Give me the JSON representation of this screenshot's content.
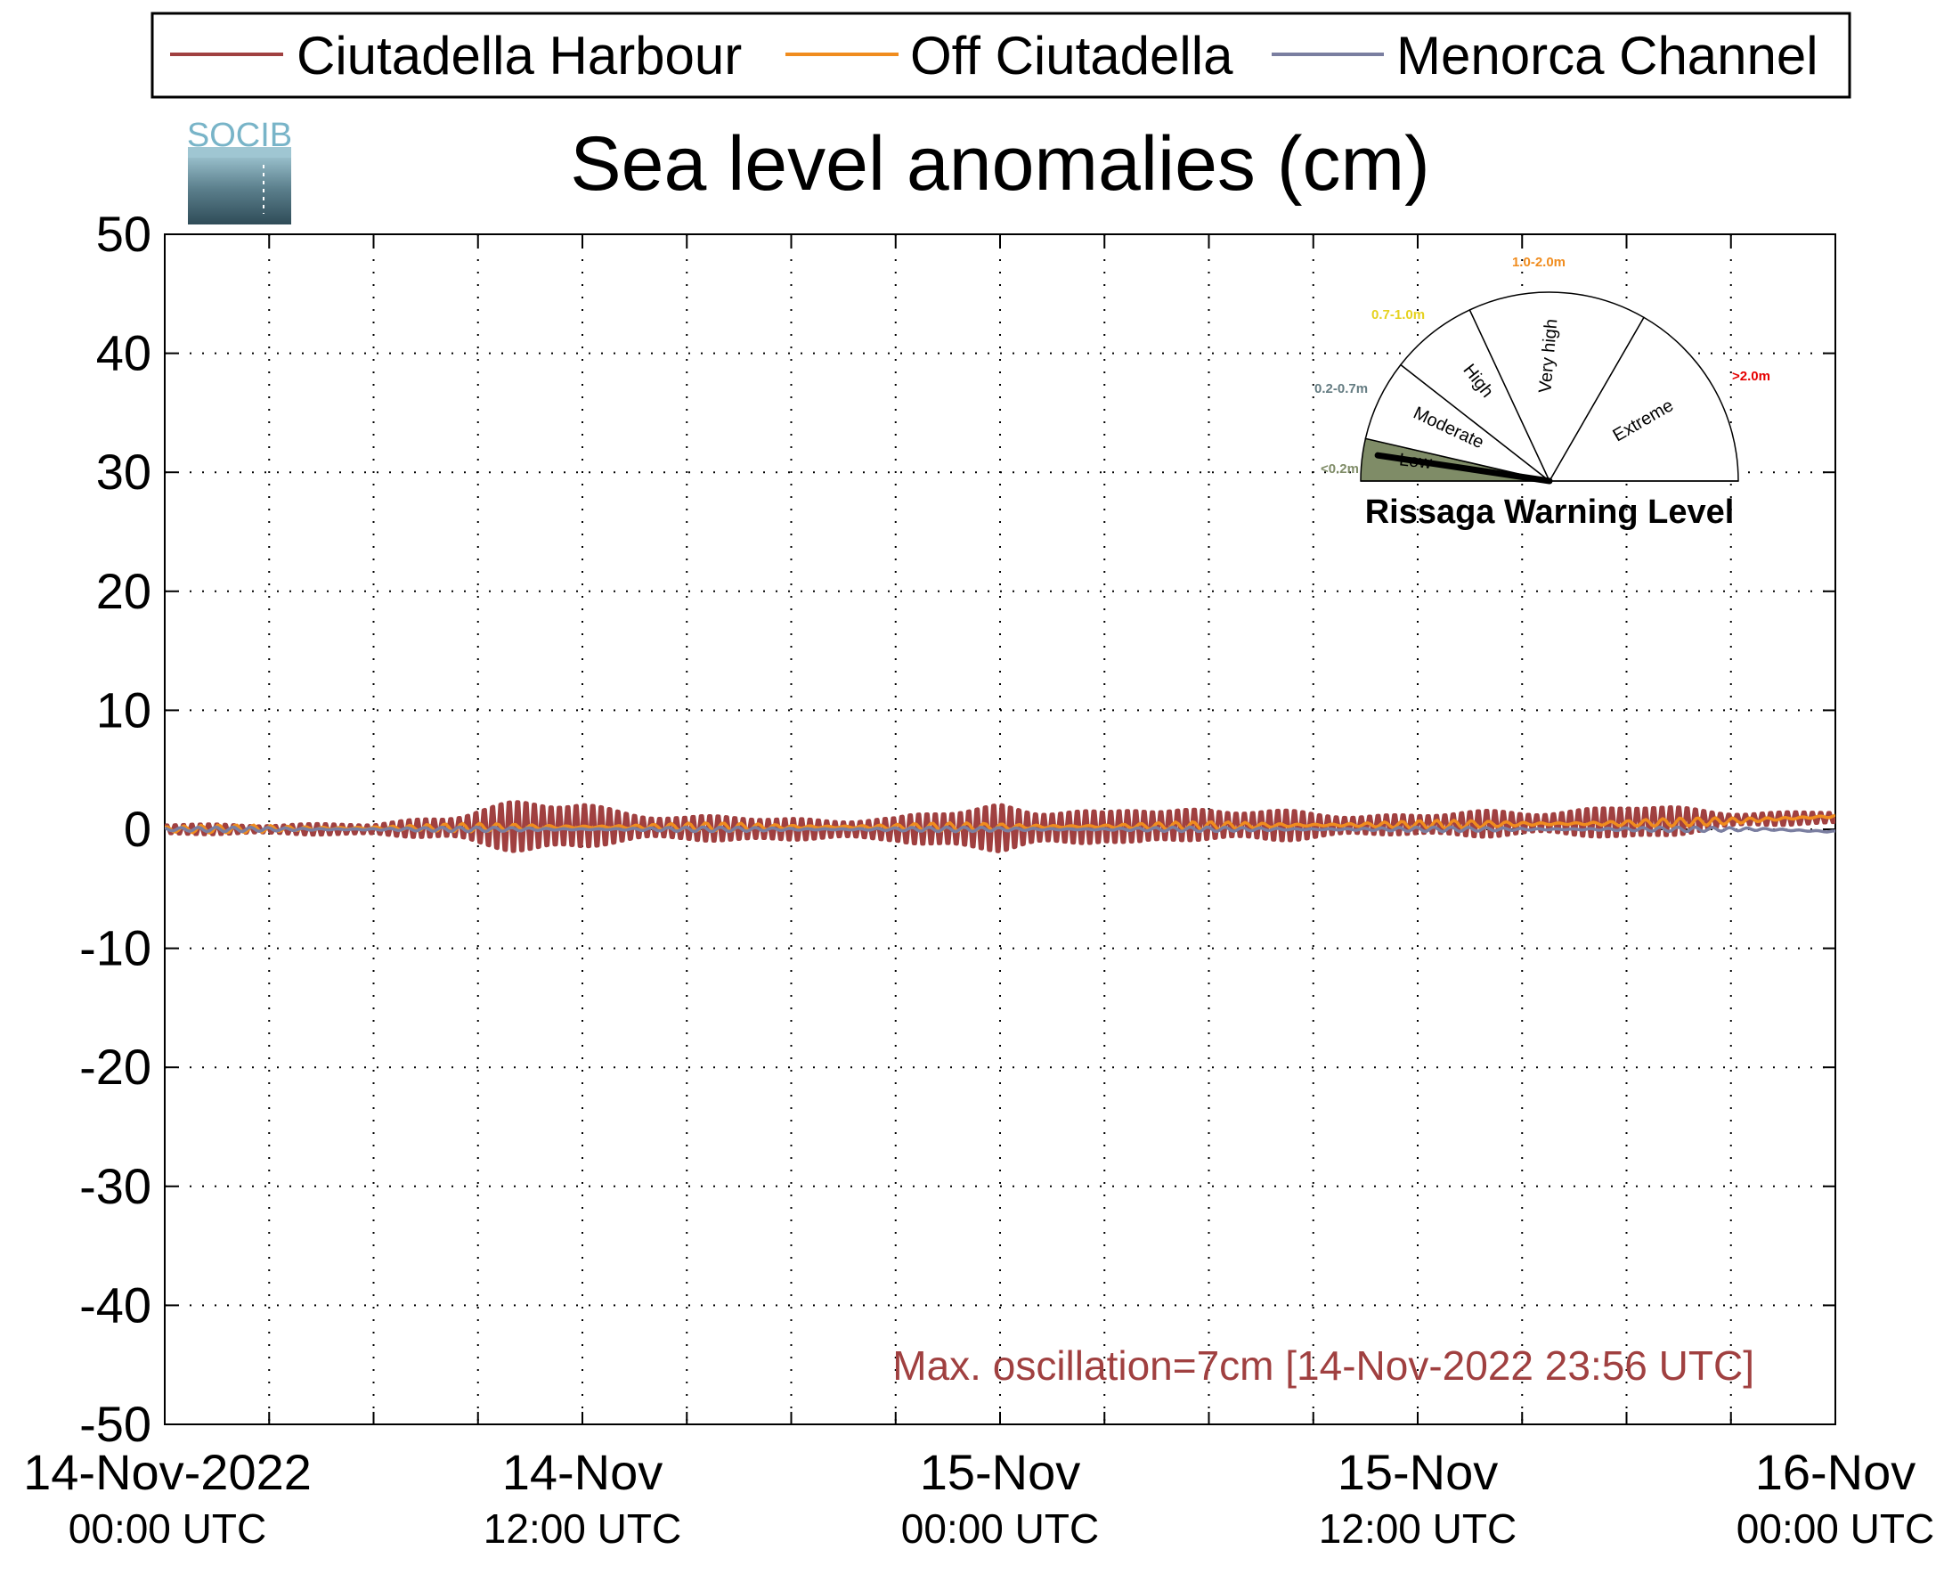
{
  "chart_data": {
    "type": "line",
    "title": "Sea level anomalies (cm)",
    "xlabel": "",
    "ylabel": "",
    "ylim": [
      -50,
      50
    ],
    "yticks": [
      50,
      40,
      30,
      20,
      10,
      0,
      -10,
      -20,
      -30,
      -40,
      -50
    ],
    "ytick_labels": [
      "50",
      "40",
      "30",
      "20",
      "10",
      "0",
      "-10",
      "-20",
      "-30",
      "-40",
      "-50"
    ],
    "xlim_hours": [
      0,
      48
    ],
    "x_unit": "hours since 14-Nov-2022 00:00 UTC",
    "xticks_hours": [
      0,
      12,
      24,
      36,
      48
    ],
    "xtick_labels": [
      {
        "line1": "14-Nov-2022",
        "line2": "00:00 UTC"
      },
      {
        "line1": "14-Nov",
        "line2": "12:00 UTC"
      },
      {
        "line1": "15-Nov",
        "line2": "00:00 UTC"
      },
      {
        "line1": "15-Nov",
        "line2": "12:00 UTC"
      },
      {
        "line1": "16-Nov",
        "line2": "00:00 UTC"
      }
    ],
    "grid": true,
    "legend_position": "top",
    "series": [
      {
        "name": "Ciutadella Harbour",
        "color": "#a04040",
        "mean_hours": [
          0,
          3,
          6,
          9,
          12,
          15,
          18,
          21,
          24,
          27,
          30,
          33,
          36,
          39,
          42,
          45,
          48
        ],
        "mean_values": [
          0,
          0,
          0,
          0.2,
          0.3,
          0.1,
          0,
          0,
          0.1,
          0.2,
          0.4,
          0.3,
          0.4,
          0.5,
          0.6,
          0.8,
          1.0
        ],
        "amp_hours": [
          0,
          3,
          6,
          8,
          9,
          10,
          11,
          12,
          13,
          15,
          18,
          21,
          23,
          24,
          25,
          27,
          28,
          30,
          33,
          36,
          39,
          41,
          42,
          43,
          45,
          48
        ],
        "amp_values": [
          0.5,
          0.6,
          0.5,
          1.4,
          2.2,
          2.5,
          2.4,
          2.6,
          2.0,
          1.2,
          1.3,
          1.1,
          2.4,
          3.0,
          2.2,
          1.4,
          2.2,
          1.9,
          1.3,
          1.2,
          1.3,
          1.7,
          1.9,
          1.5,
          0.9,
          0.6
        ]
      },
      {
        "name": "Off Ciutadella",
        "color": "#f08c1e",
        "mean_hours": [
          0,
          12,
          24,
          30,
          36,
          42,
          45,
          48
        ],
        "mean_values": [
          0,
          0.2,
          0.2,
          0.3,
          0.4,
          0.5,
          0.7,
          1.1
        ]
      },
      {
        "name": "Menorca Channel",
        "color": "#7a7ea0",
        "mean_hours": [
          0,
          12,
          24,
          36,
          42,
          46,
          48
        ],
        "mean_values": [
          0,
          0,
          0,
          0,
          0,
          0,
          -0.2
        ]
      }
    ],
    "annotation": "Max. oscillation=7cm [14-Nov-2022 23:56 UTC]"
  },
  "legend": {
    "items": [
      "Ciutadella Harbour",
      "Off Ciutadella",
      "Menorca Channel"
    ]
  },
  "logo": {
    "text": "SOCIB"
  },
  "gauge": {
    "title": "Rissaga Warning Level",
    "sectors": [
      {
        "label": "Low",
        "range": "<0.2m",
        "color": "#7f8c67",
        "active": true
      },
      {
        "label": "Moderate",
        "range": "0.2-0.7m",
        "color": "#647c82"
      },
      {
        "label": "High",
        "range": "0.7-1.0m",
        "color": "#e6d21e"
      },
      {
        "label": "Very high",
        "range": "1.0-2.0m",
        "color": "#f08c1e"
      },
      {
        "label": "Extreme",
        "range": ">2.0m",
        "color": "#e60000"
      }
    ]
  }
}
